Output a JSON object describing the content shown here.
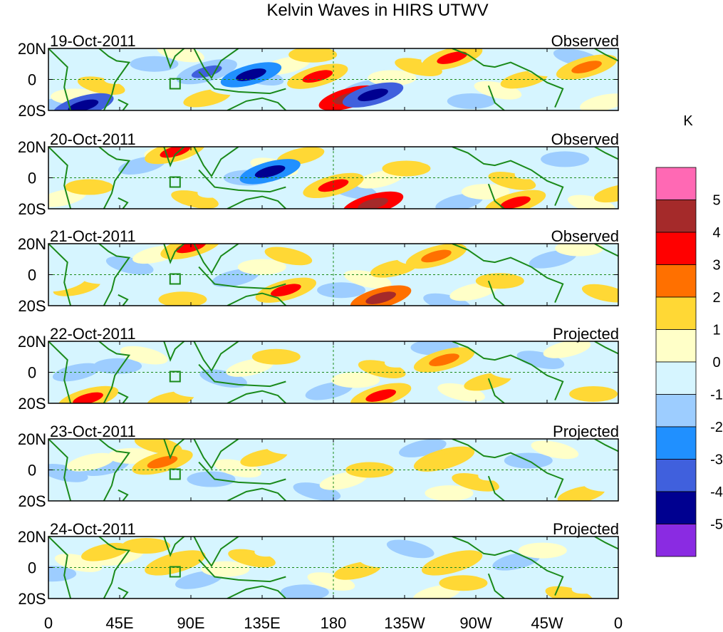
{
  "chart_data": {
    "type": "heatmap",
    "title": "Kelvin Waves in HIRS UTWV",
    "panels": [
      {
        "date": "19-Oct-2011",
        "kind": "Observed"
      },
      {
        "date": "20-Oct-2011",
        "kind": "Observed"
      },
      {
        "date": "21-Oct-2011",
        "kind": "Observed"
      },
      {
        "date": "22-Oct-2011",
        "kind": "Projected"
      },
      {
        "date": "23-Oct-2011",
        "kind": "Projected"
      },
      {
        "date": "24-Oct-2011",
        "kind": "Projected"
      }
    ],
    "x_ticks": [
      "0",
      "45E",
      "90E",
      "135E",
      "180",
      "135W",
      "90W",
      "45W",
      "0"
    ],
    "x_tick_lon": [
      0,
      45,
      90,
      135,
      180,
      225,
      270,
      315,
      360
    ],
    "xlim": [
      0,
      360
    ],
    "y_ticks": [
      "20N",
      "0",
      "20S"
    ],
    "y_tick_lat": [
      20,
      0,
      -20
    ],
    "ylim": [
      -20,
      20
    ],
    "colorbar": {
      "unit": "K",
      "labels": [
        "5",
        "4",
        "3",
        "2",
        "1",
        "0",
        "-1",
        "-2",
        "-3",
        "-4",
        "-5"
      ],
      "bins": [
        {
          "range": "> 5",
          "color": "#ff69b4"
        },
        {
          "range": "4 to 5",
          "color": "#a52a2a"
        },
        {
          "range": "3 to 4",
          "color": "#ff0000"
        },
        {
          "range": "2 to 3",
          "color": "#ff7000"
        },
        {
          "range": "1 to 2",
          "color": "#ffd835"
        },
        {
          "range": "0 to 1",
          "color": "#ffffc8"
        },
        {
          "range": "-1 to 0",
          "color": "#d6f5ff"
        },
        {
          "range": "-2 to -1",
          "color": "#9dcdff"
        },
        {
          "range": "-3 to -2",
          "color": "#2090ff"
        },
        {
          "range": "-4 to -3",
          "color": "#4060dd"
        },
        {
          "range": "-5 to -4",
          "color": "#000090"
        },
        {
          "range": "< -5",
          "color": "#8a2be2"
        }
      ]
    },
    "anomaly_features": [
      {
        "panel": 0,
        "lon": 22,
        "lat": -17,
        "value": -4.5
      },
      {
        "panel": 0,
        "lon": 100,
        "lat": 5,
        "value": -3
      },
      {
        "panel": 0,
        "lon": 128,
        "lat": 3,
        "value": -4
      },
      {
        "panel": 0,
        "lon": 170,
        "lat": 2,
        "value": 3
      },
      {
        "panel": 0,
        "lon": 190,
        "lat": -12,
        "value": 4.5
      },
      {
        "panel": 0,
        "lon": 205,
        "lat": -10,
        "value": -4.5
      },
      {
        "panel": 0,
        "lon": 255,
        "lat": 14,
        "value": 3
      },
      {
        "panel": 0,
        "lon": 340,
        "lat": 8,
        "value": 2.5
      },
      {
        "panel": 1,
        "lon": 80,
        "lat": 17,
        "value": 3
      },
      {
        "panel": 1,
        "lon": 140,
        "lat": 4,
        "value": -4
      },
      {
        "panel": 1,
        "lon": 180,
        "lat": -5,
        "value": 3
      },
      {
        "panel": 1,
        "lon": 205,
        "lat": -17,
        "value": 4.5
      },
      {
        "panel": 1,
        "lon": 295,
        "lat": -16,
        "value": 3
      },
      {
        "panel": 2,
        "lon": 90,
        "lat": 18,
        "value": 3
      },
      {
        "panel": 2,
        "lon": 150,
        "lat": -10,
        "value": 3
      },
      {
        "panel": 2,
        "lon": 210,
        "lat": -15,
        "value": 4
      },
      {
        "panel": 2,
        "lon": 245,
        "lat": 12,
        "value": 2.5
      },
      {
        "panel": 3,
        "lon": 25,
        "lat": -17,
        "value": 3
      },
      {
        "panel": 3,
        "lon": 210,
        "lat": -15,
        "value": 3
      },
      {
        "panel": 3,
        "lon": 250,
        "lat": 8,
        "value": 2.5
      },
      {
        "panel": 4,
        "lon": 72,
        "lat": 5,
        "value": 2.5
      },
      {
        "panel": 4,
        "lon": 250,
        "lat": 7,
        "value": 1.5
      },
      {
        "panel": 5,
        "lon": 80,
        "lat": 3,
        "value": 1.5
      },
      {
        "panel": 5,
        "lon": 255,
        "lat": 3,
        "value": 1.5
      }
    ]
  }
}
